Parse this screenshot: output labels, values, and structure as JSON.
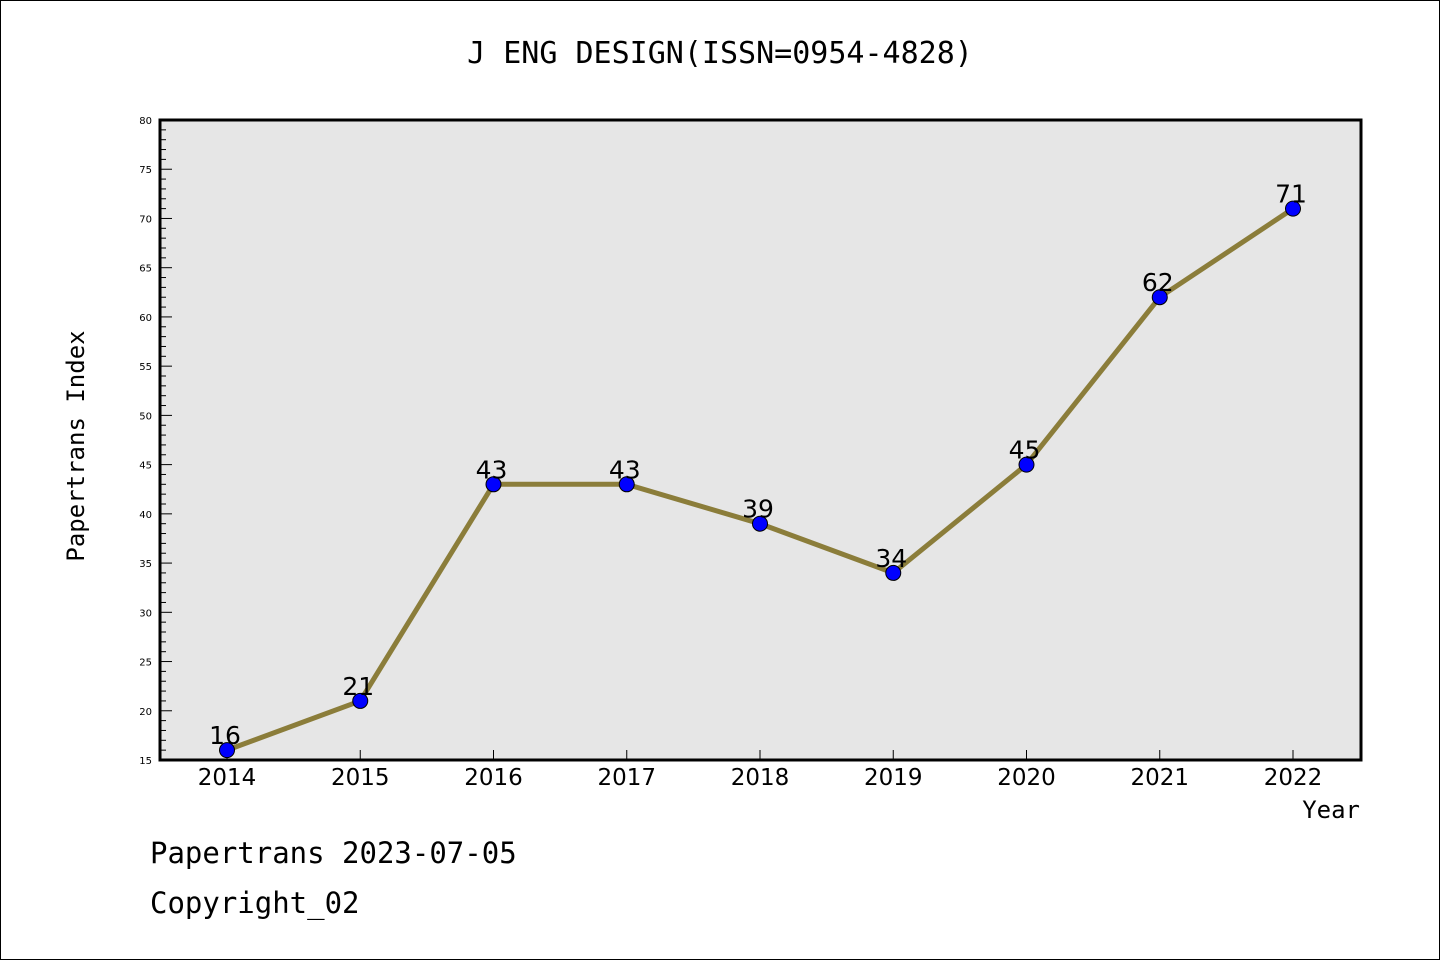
{
  "title": "J ENG DESIGN(ISSN=0954-4828)",
  "footer": {
    "line1": "Papertrans 2023-07-05",
    "line2": "Copyright_02"
  },
  "chart_data": {
    "type": "line",
    "title": "J ENG DESIGN(ISSN=0954-4828)",
    "xlabel": "Year",
    "ylabel": "Papertrans Index",
    "categories": [
      "2014",
      "2015",
      "2016",
      "2017",
      "2018",
      "2019",
      "2020",
      "2021",
      "2022"
    ],
    "series": [
      {
        "values": [
          16,
          21,
          43,
          43,
          39,
          34,
          45,
          62,
          71
        ],
        "line_color": "#8b7d3a",
        "marker_color": "#0000ff"
      }
    ],
    "ylim": [
      15,
      80
    ],
    "yticks": [
      15,
      20,
      25,
      30,
      35,
      40,
      45,
      50,
      55,
      60,
      65,
      70,
      75,
      80
    ],
    "plot_background": "#e6e6e6",
    "grid": false,
    "data_labels": true
  }
}
